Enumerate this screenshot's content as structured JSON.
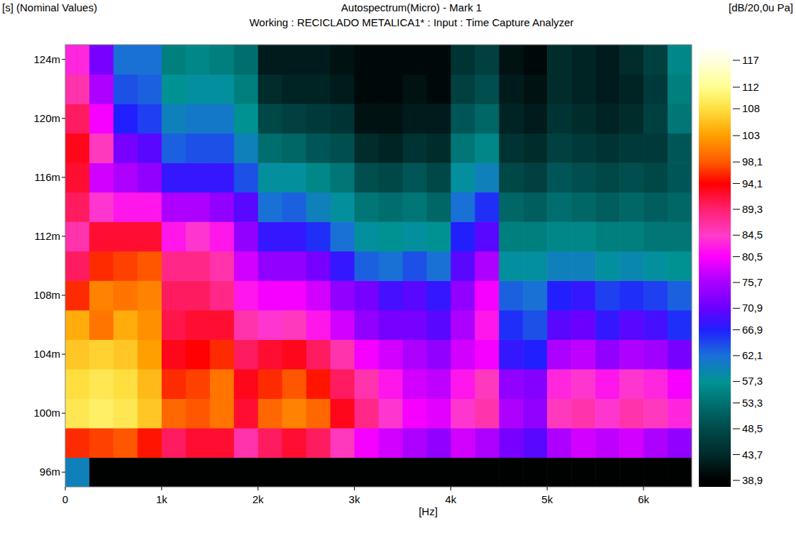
{
  "chart_data": {
    "type": "heatmap",
    "title": "Autospectrum(Micro) - Mark 1",
    "subtitle": "Working : RECICLADO METALICA1* : Input : Time Capture Analyzer",
    "x_label": "[Hz]",
    "y_label": "[s] (Nominal Values)",
    "colorbar_label": "[dB/20,0u Pa]",
    "x": [
      125,
      375,
      625,
      875,
      1125,
      1375,
      1625,
      1875,
      2125,
      2375,
      2625,
      2875,
      3125,
      3375,
      3625,
      3875,
      4125,
      4375,
      4625,
      4875,
      5125,
      5375,
      5625,
      5875,
      6125,
      6375
    ],
    "y": [
      0.096,
      0.098,
      0.1,
      0.102,
      0.104,
      0.106,
      0.108,
      0.11,
      0.112,
      0.114,
      0.116,
      0.118,
      0.12,
      0.122,
      0.124
    ],
    "values": [
      [
        60,
        39,
        39,
        39,
        39,
        39,
        39,
        39,
        39,
        39,
        39,
        39,
        39,
        39,
        39,
        39,
        39,
        39,
        39,
        39,
        39,
        39,
        39,
        39,
        39,
        39
      ],
      [
        96,
        97,
        98,
        95,
        90,
        92,
        92,
        86,
        90,
        92,
        90,
        85,
        80,
        78,
        76,
        74,
        78,
        76,
        72,
        70,
        76,
        78,
        77,
        78,
        76,
        74
      ],
      [
        109,
        110,
        109,
        106,
        99,
        98,
        100,
        92,
        99,
        101,
        99,
        93,
        88,
        84,
        80,
        79,
        84,
        86,
        76,
        74,
        85,
        86,
        84,
        86,
        85,
        83
      ],
      [
        108,
        109,
        108,
        105,
        96,
        97,
        100,
        93,
        96,
        98,
        95,
        90,
        86,
        82,
        78,
        77,
        82,
        85,
        74,
        73,
        83,
        84,
        82,
        84,
        83,
        80
      ],
      [
        106,
        107,
        106,
        103,
        93,
        94,
        96,
        90,
        92,
        93,
        90,
        86,
        80,
        78,
        76,
        74,
        78,
        80,
        68,
        67,
        76,
        77,
        74,
        76,
        75,
        72
      ],
      [
        104,
        100,
        104,
        102,
        91,
        92,
        92,
        86,
        84,
        85,
        82,
        78,
        74,
        72,
        72,
        70,
        76,
        82,
        66,
        64,
        70,
        71,
        68,
        70,
        69,
        66
      ],
      [
        96,
        101,
        100,
        101,
        90,
        90,
        88,
        82,
        80,
        80,
        78,
        74,
        72,
        69,
        70,
        68,
        74,
        80,
        63,
        62,
        67,
        68,
        65,
        66,
        65,
        63
      ],
      [
        90,
        96,
        97,
        98,
        88,
        88,
        86,
        78,
        74,
        74,
        72,
        68,
        63,
        62,
        64,
        62,
        70,
        76,
        58,
        58,
        60,
        60,
        58,
        59,
        58,
        57
      ],
      [
        86,
        92,
        92,
        92,
        82,
        84,
        82,
        74,
        68,
        68,
        66,
        62,
        58,
        57,
        58,
        57,
        67,
        70,
        55,
        55,
        56,
        56,
        55,
        55,
        54,
        54
      ],
      [
        90,
        84,
        82,
        82,
        76,
        76,
        74,
        70,
        62,
        63,
        60,
        58,
        54,
        53,
        54,
        52,
        62,
        66,
        52,
        51,
        53,
        52,
        51,
        52,
        51,
        52
      ],
      [
        92,
        78,
        76,
        74,
        68,
        68,
        68,
        64,
        58,
        58,
        56,
        54,
        49,
        48,
        50,
        48,
        58,
        60,
        48,
        47,
        50,
        49,
        48,
        49,
        48,
        50
      ],
      [
        93,
        85,
        72,
        70,
        63,
        64,
        64,
        60,
        53,
        52,
        50,
        49,
        44,
        43,
        45,
        44,
        54,
        56,
        45,
        44,
        47,
        46,
        45,
        46,
        46,
        50
      ],
      [
        90,
        80,
        67,
        65,
        60,
        61,
        61,
        57,
        48,
        47,
        46,
        45,
        41,
        41,
        42,
        42,
        50,
        52,
        43,
        42,
        45,
        44,
        43,
        44,
        47,
        54
      ],
      [
        86,
        76,
        64,
        63,
        57,
        58,
        58,
        55,
        44,
        43,
        43,
        42,
        40,
        40,
        41,
        40,
        47,
        49,
        42,
        41,
        44,
        43,
        42,
        43,
        46,
        55
      ],
      [
        83,
        72,
        62,
        62,
        55,
        56,
        55,
        53,
        42,
        42,
        42,
        41,
        40,
        40,
        40,
        40,
        45,
        47,
        41,
        40,
        44,
        43,
        42,
        44,
        47,
        56
      ]
    ],
    "xlim": [
      0,
      6500
    ],
    "ylim": [
      0.095,
      0.125
    ],
    "xticks": [
      0,
      {
        "value": 1000,
        "label": "1k"
      },
      {
        "value": 2000,
        "label": "2k"
      },
      {
        "value": 3000,
        "label": "3k"
      },
      {
        "value": 4000,
        "label": "4k"
      },
      {
        "value": 5000,
        "label": "5k"
      },
      {
        "value": 6000,
        "label": "6k"
      }
    ],
    "yticks": [
      {
        "value": 0.096,
        "label": "96m"
      },
      {
        "value": 0.1,
        "label": "100m"
      },
      {
        "value": 0.104,
        "label": "104m"
      },
      {
        "value": 0.108,
        "label": "108m"
      },
      {
        "value": 0.112,
        "label": "112m"
      },
      {
        "value": 0.116,
        "label": "116m"
      },
      {
        "value": 0.12,
        "label": "120m"
      },
      {
        "value": 0.124,
        "label": "124m"
      }
    ],
    "colorbar_range": [
      37.7,
      119.9
    ],
    "colorbar_ticks": [
      {
        "value": 117,
        "label": "117"
      },
      {
        "value": 112,
        "label": "112"
      },
      {
        "value": 108,
        "label": "108"
      },
      {
        "value": 103,
        "label": "103"
      },
      {
        "value": 98.1,
        "label": "98,1"
      },
      {
        "value": 94.1,
        "label": "94,1"
      },
      {
        "value": 89.3,
        "label": "89,3"
      },
      {
        "value": 84.5,
        "label": "84,5"
      },
      {
        "value": 80.5,
        "label": "80,5"
      },
      {
        "value": 75.7,
        "label": "75,7"
      },
      {
        "value": 70.9,
        "label": "70,9"
      },
      {
        "value": 66.9,
        "label": "66,9"
      },
      {
        "value": 62.1,
        "label": "62,1"
      },
      {
        "value": 57.3,
        "label": "57,3"
      },
      {
        "value": 53.3,
        "label": "53,3"
      },
      {
        "value": 48.5,
        "label": "48,5"
      },
      {
        "value": 43.7,
        "label": "43,7"
      },
      {
        "value": 38.9,
        "label": "38,9"
      }
    ]
  }
}
